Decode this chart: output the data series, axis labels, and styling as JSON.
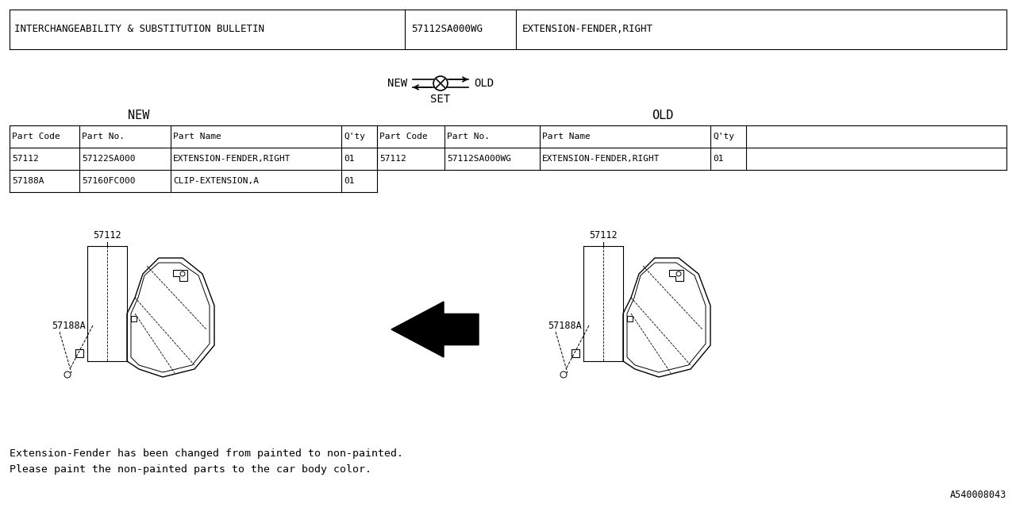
{
  "bg_color": "#ffffff",
  "title_col1": "INTERCHANGEABILITY & SUBSTITUTION BULLETIN",
  "title_col2": "57112SA000WG",
  "title_col3": "EXTENSION-FENDER,RIGHT",
  "new_label": "NEW",
  "old_label": "OLD",
  "set_label": "SET",
  "hdr": [
    "Part Code",
    "Part No.",
    "Part Name",
    "Q'ty",
    "Part Code",
    "Part No.",
    "Part Name",
    "Q'ty"
  ],
  "new_rows": [
    [
      "57112",
      "57122SA000",
      "EXTENSION-FENDER,RIGHT",
      "01"
    ],
    [
      "57188A",
      "57160FC000",
      "CLIP-EXTENSION,A",
      "01"
    ]
  ],
  "old_rows": [
    [
      "57112",
      "57112SA000WG",
      "EXTENSION-FENDER,RIGHT",
      "01"
    ]
  ],
  "note1": "Extension-Fender has been changed from painted to non-painted.",
  "note2": "Please paint the non-painted parts to the car body color.",
  "ref": "A540008043",
  "label_57112": "57112",
  "label_57188A": "57188A"
}
